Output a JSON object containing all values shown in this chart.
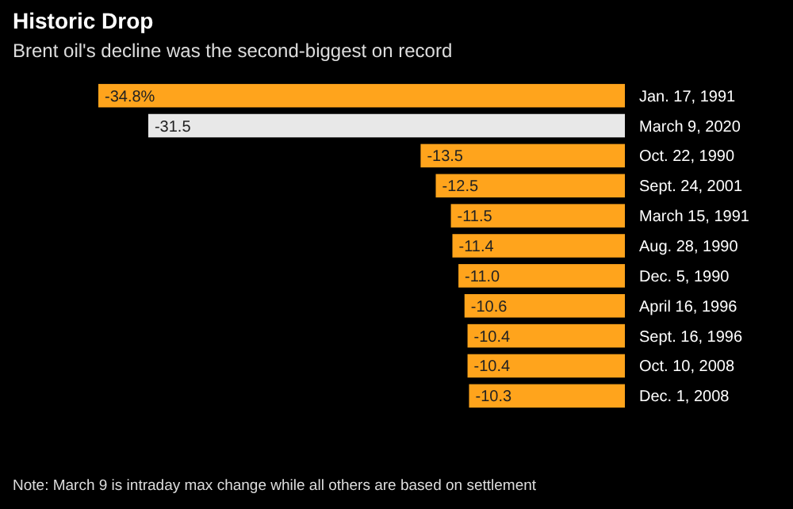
{
  "chart_data": {
    "type": "bar",
    "orientation": "horizontal",
    "title": "Historic Drop",
    "subtitle": "Brent oil's decline was the second-biggest on record",
    "categories": [
      "Jan. 17, 1991",
      "March 9, 2020",
      "Oct. 22, 1990",
      "Sept. 24, 2001",
      "March 15, 1991",
      "Aug. 28, 1990",
      "Dec. 5, 1990",
      "April 16, 1996",
      "Sept. 16, 1996",
      "Oct. 10, 2008",
      "Dec. 1, 2008"
    ],
    "values": [
      -34.8,
      -31.5,
      -13.5,
      -12.5,
      -11.5,
      -11.4,
      -11.0,
      -10.6,
      -10.4,
      -10.4,
      -10.3
    ],
    "colors": [
      "#ffa41c",
      "#e8e8e8",
      "#ffa41c",
      "#ffa41c",
      "#ffa41c",
      "#ffa41c",
      "#ffa41c",
      "#ffa41c",
      "#ffa41c",
      "#ffa41c",
      "#ffa41c"
    ],
    "value_labels": [
      "-34.8%",
      "-31.5",
      "-13.5",
      "-12.5",
      "-11.5",
      "-11.4",
      "-11.0",
      "-10.6",
      "-10.4",
      "-10.4",
      "-10.3"
    ],
    "tick_labels": "y",
    "annotations": [
      "Note: March 9 is intraday max change while all others are based on settlement"
    ]
  }
}
